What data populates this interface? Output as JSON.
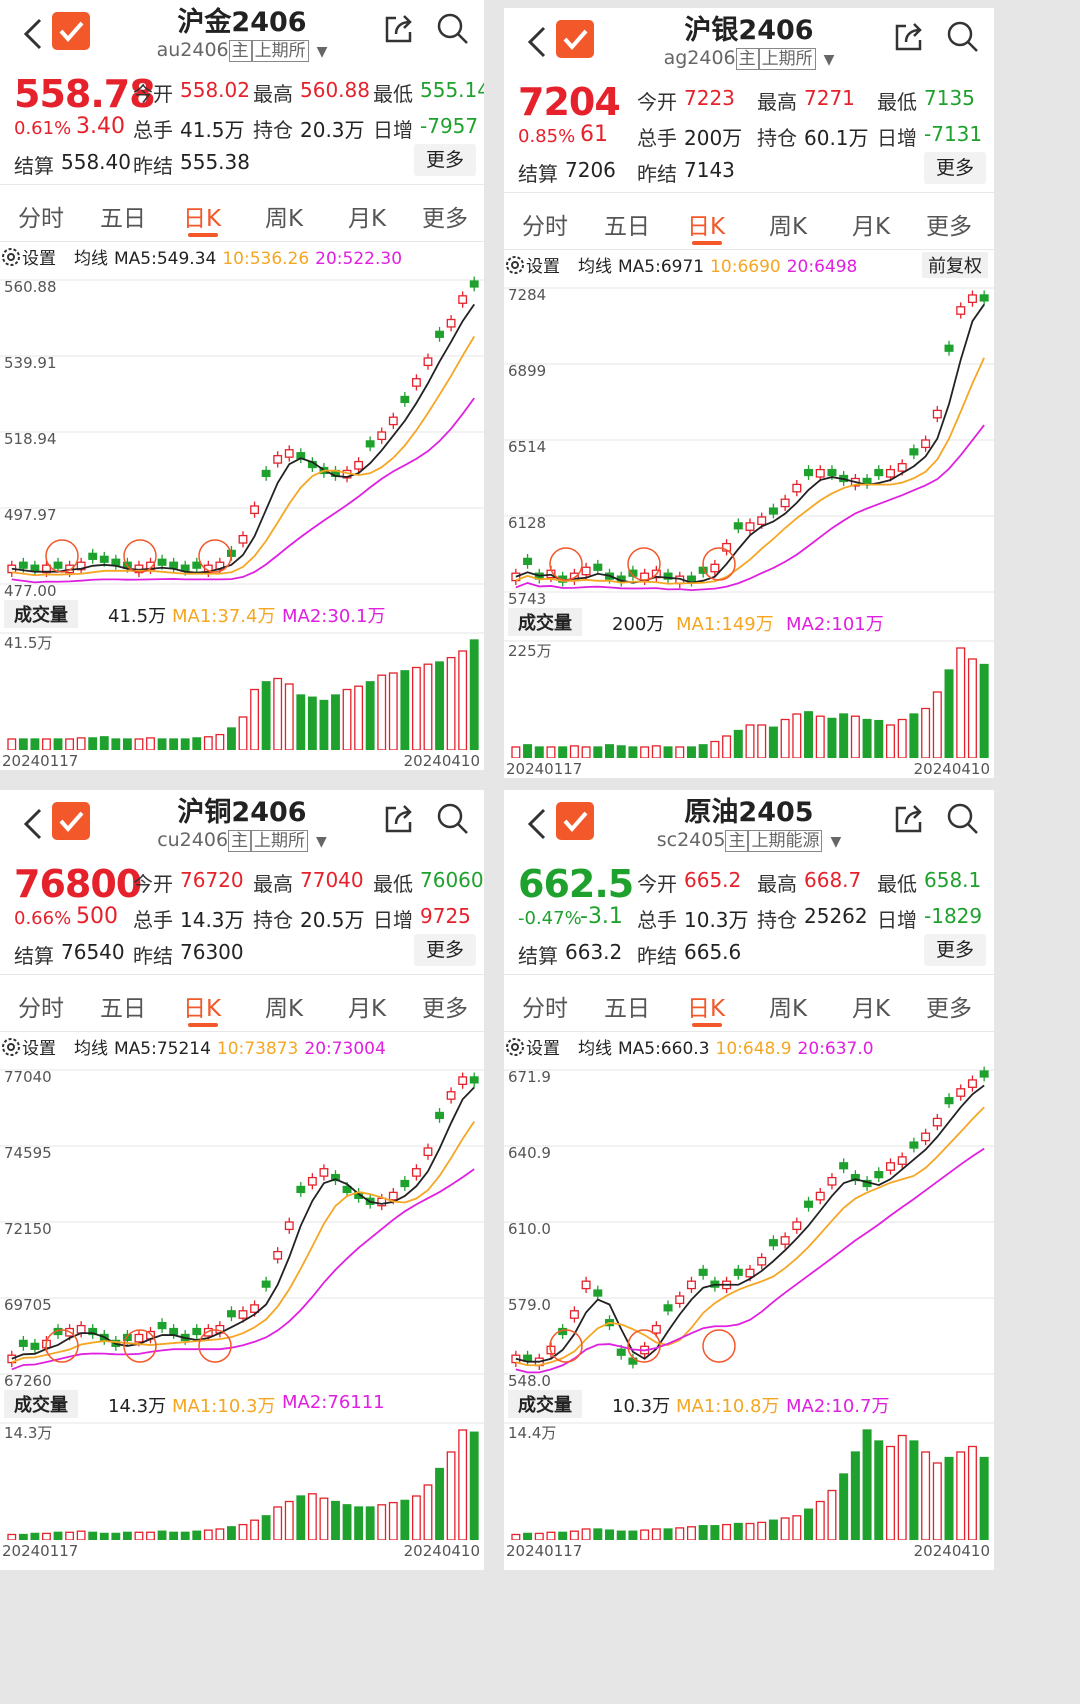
{
  "colors": {
    "up": "#e5212b",
    "down": "#1fa12e",
    "accent": "#f2582a",
    "ma1": "#222222",
    "ma2": "#f5a623",
    "ma3": "#e020e0"
  },
  "panels": [
    {
      "title": "沪金2406",
      "code": "au2406",
      "badge_main": "主",
      "badge_exchange": "上期所",
      "price": "558.78",
      "price_dir": "up",
      "pct": "0.61%",
      "chg": "3.40",
      "open_label": "今开",
      "open": "558.02",
      "high_label": "最高",
      "high": "560.88",
      "low_label": "最低",
      "low": "555.14",
      "vol_label": "总手",
      "vol": "41.5万",
      "oi_label": "持仓",
      "oi": "20.3万",
      "dinc_label": "日增",
      "dinc": "-7957",
      "dinc_dir": "down",
      "settle_label": "结算",
      "settle": "558.40",
      "prev_label": "昨结",
      "prev": "555.38",
      "more": "更多",
      "tabs": [
        "分时",
        "五日",
        "日K",
        "周K",
        "月K",
        "更多"
      ],
      "settings": "设置",
      "ma_label": "均线",
      "ma5": "MA5:549.34",
      "ma10": "10:536.26",
      "ma20": "20:522.30",
      "right_btn": "",
      "y_labels": [
        "560.88",
        "539.91",
        "518.94",
        "497.97",
        "477.00"
      ],
      "volume_badge": "成交量",
      "volume": "41.5万",
      "ma1": "MA1:37.4万",
      "ma2": "MA2:30.1万",
      "vol_top": "41.5万",
      "date_start": "20240117",
      "date_end": "20240410"
    },
    {
      "title": "沪银2406",
      "code": "ag2406",
      "badge_main": "主",
      "badge_exchange": "上期所",
      "price": "7204",
      "price_dir": "up",
      "pct": "0.85%",
      "chg": "61",
      "open_label": "今开",
      "open": "7223",
      "high_label": "最高",
      "high": "7271",
      "low_label": "最低",
      "low": "7135",
      "vol_label": "总手",
      "vol": "200万",
      "oi_label": "持仓",
      "oi": "60.1万",
      "dinc_label": "日增",
      "dinc": "-7131",
      "dinc_dir": "down",
      "settle_label": "结算",
      "settle": "7206",
      "prev_label": "昨结",
      "prev": "7143",
      "more": "更多",
      "tabs": [
        "分时",
        "五日",
        "日K",
        "周K",
        "月K",
        "更多"
      ],
      "settings": "设置",
      "ma_label": "均线",
      "ma5": "MA5:6971",
      "ma10": "10:6690",
      "ma20": "20:6498",
      "right_btn": "前复权",
      "y_labels": [
        "7284",
        "6899",
        "6514",
        "6128",
        "5743"
      ],
      "volume_badge": "成交量",
      "volume": "200万",
      "ma1": "MA1:149万",
      "ma2": "MA2:101万",
      "vol_top": "225万",
      "date_start": "20240117",
      "date_end": "20240410"
    },
    {
      "title": "沪铜2406",
      "code": "cu2406",
      "badge_main": "主",
      "badge_exchange": "上期所",
      "price": "76800",
      "price_dir": "up",
      "pct": "0.66%",
      "chg": "500",
      "open_label": "今开",
      "open": "76720",
      "high_label": "最高",
      "high": "77040",
      "low_label": "最低",
      "low": "76060",
      "vol_label": "总手",
      "vol": "14.3万",
      "oi_label": "持仓",
      "oi": "20.5万",
      "dinc_label": "日增",
      "dinc": "9725",
      "dinc_dir": "up",
      "settle_label": "结算",
      "settle": "76540",
      "prev_label": "昨结",
      "prev": "76300",
      "more": "更多",
      "tabs": [
        "分时",
        "五日",
        "日K",
        "周K",
        "月K",
        "更多"
      ],
      "settings": "设置",
      "ma_label": "均线",
      "ma5": "MA5:75214",
      "ma10": "10:73873",
      "ma20": "20:73004",
      "right_btn": "",
      "y_labels": [
        "77040",
        "74595",
        "72150",
        "69705",
        "67260"
      ],
      "volume_badge": "成交量",
      "volume": "14.3万",
      "ma1": "MA1:10.3万",
      "ma2": "MA2:76111",
      "vol_top": "14.3万",
      "date_start": "20240117",
      "date_end": "20240410"
    },
    {
      "title": "原油2405",
      "code": "sc2405",
      "badge_main": "主",
      "badge_exchange": "上期能源",
      "price": "662.5",
      "price_dir": "down",
      "pct": "-0.47%",
      "chg": "-3.1",
      "open_label": "今开",
      "open": "665.2",
      "high_label": "最高",
      "high": "668.7",
      "low_label": "最低",
      "low": "658.1",
      "vol_label": "总手",
      "vol": "10.3万",
      "oi_label": "持仓",
      "oi": "25262",
      "dinc_label": "日增",
      "dinc": "-1829",
      "dinc_dir": "down",
      "settle_label": "结算",
      "settle": "663.2",
      "prev_label": "昨结",
      "prev": "665.6",
      "more": "更多",
      "tabs": [
        "分时",
        "五日",
        "日K",
        "周K",
        "月K",
        "更多"
      ],
      "settings": "设置",
      "ma_label": "均线",
      "ma5": "MA5:660.3",
      "ma10": "10:648.9",
      "ma20": "20:637.0",
      "right_btn": "",
      "y_labels": [
        "671.9",
        "640.9",
        "610.0",
        "579.0",
        "548.0"
      ],
      "volume_badge": "成交量",
      "volume": "10.3万",
      "ma1": "MA1:10.8万",
      "ma2": "MA2:10.7万",
      "vol_top": "14.4万",
      "date_start": "20240117",
      "date_end": "20240410"
    }
  ],
  "chart_data": [
    {
      "type": "candlestick",
      "ylim": [
        477.0,
        560.88
      ],
      "shape": [
        0.05,
        0.04,
        0.03,
        0.05,
        0.04,
        0.05,
        0.06,
        0.07,
        0.06,
        0.05,
        0.04,
        0.05,
        0.06,
        0.05,
        0.04,
        0.03,
        0.04,
        0.05,
        0.06,
        0.08,
        0.15,
        0.25,
        0.35,
        0.42,
        0.44,
        0.41,
        0.38,
        0.36,
        0.35,
        0.37,
        0.4,
        0.45,
        0.5,
        0.55,
        0.6,
        0.68,
        0.75,
        0.82,
        0.88,
        0.96,
        0.99
      ],
      "vol_shape": [
        0.1,
        0.1,
        0.1,
        0.1,
        0.1,
        0.1,
        0.11,
        0.11,
        0.12,
        0.1,
        0.1,
        0.1,
        0.11,
        0.1,
        0.1,
        0.1,
        0.11,
        0.12,
        0.14,
        0.2,
        0.3,
        0.55,
        0.62,
        0.65,
        0.6,
        0.5,
        0.48,
        0.45,
        0.5,
        0.55,
        0.58,
        0.62,
        0.68,
        0.7,
        0.72,
        0.75,
        0.78,
        0.8,
        0.84,
        0.9,
        1.0
      ]
    },
    {
      "type": "candlestick",
      "ylim": [
        5743,
        7284
      ],
      "shape": [
        0.05,
        0.08,
        0.03,
        0.06,
        0.02,
        0.05,
        0.07,
        0.06,
        0.03,
        0.02,
        0.04,
        0.05,
        0.06,
        0.03,
        0.04,
        0.02,
        0.05,
        0.08,
        0.15,
        0.2,
        0.22,
        0.24,
        0.25,
        0.3,
        0.35,
        0.38,
        0.4,
        0.38,
        0.36,
        0.37,
        0.35,
        0.38,
        0.4,
        0.42,
        0.45,
        0.5,
        0.6,
        0.8,
        0.95,
        0.99,
        0.97
      ],
      "vol_shape": [
        0.1,
        0.12,
        0.1,
        0.1,
        0.1,
        0.11,
        0.1,
        0.1,
        0.12,
        0.11,
        0.1,
        0.1,
        0.11,
        0.1,
        0.1,
        0.1,
        0.12,
        0.15,
        0.2,
        0.25,
        0.3,
        0.3,
        0.28,
        0.35,
        0.4,
        0.42,
        0.38,
        0.36,
        0.4,
        0.38,
        0.35,
        0.34,
        0.3,
        0.35,
        0.4,
        0.45,
        0.6,
        0.8,
        1.0,
        0.9,
        0.85
      ]
    },
    {
      "type": "candlestick",
      "ylim": [
        67260,
        77040
      ],
      "shape": [
        0.05,
        0.08,
        0.07,
        0.1,
        0.12,
        0.14,
        0.15,
        0.12,
        0.1,
        0.08,
        0.1,
        0.12,
        0.13,
        0.14,
        0.12,
        0.1,
        0.12,
        0.14,
        0.15,
        0.18,
        0.2,
        0.22,
        0.28,
        0.4,
        0.5,
        0.6,
        0.65,
        0.68,
        0.64,
        0.6,
        0.58,
        0.56,
        0.58,
        0.6,
        0.62,
        0.68,
        0.75,
        0.85,
        0.94,
        0.99,
        0.97
      ],
      "vol_shape": [
        0.05,
        0.05,
        0.06,
        0.06,
        0.07,
        0.07,
        0.08,
        0.07,
        0.06,
        0.06,
        0.07,
        0.07,
        0.07,
        0.08,
        0.07,
        0.07,
        0.08,
        0.09,
        0.1,
        0.12,
        0.14,
        0.18,
        0.22,
        0.3,
        0.35,
        0.4,
        0.42,
        0.38,
        0.35,
        0.32,
        0.3,
        0.3,
        0.32,
        0.34,
        0.36,
        0.4,
        0.5,
        0.65,
        0.8,
        1.0,
        0.98
      ]
    },
    {
      "type": "candlestick",
      "ylim": [
        548.0,
        671.9
      ],
      "shape": [
        0.05,
        0.03,
        0.04,
        0.08,
        0.12,
        0.2,
        0.3,
        0.25,
        0.15,
        0.05,
        0.02,
        0.08,
        0.15,
        0.2,
        0.25,
        0.3,
        0.32,
        0.28,
        0.3,
        0.32,
        0.34,
        0.38,
        0.42,
        0.45,
        0.5,
        0.55,
        0.6,
        0.65,
        0.68,
        0.64,
        0.62,
        0.65,
        0.7,
        0.72,
        0.75,
        0.8,
        0.85,
        0.9,
        0.95,
        0.98,
        0.99
      ],
      "vol_shape": [
        0.05,
        0.06,
        0.06,
        0.07,
        0.07,
        0.08,
        0.1,
        0.1,
        0.09,
        0.08,
        0.08,
        0.09,
        0.1,
        0.1,
        0.11,
        0.12,
        0.13,
        0.13,
        0.14,
        0.15,
        0.15,
        0.16,
        0.18,
        0.2,
        0.22,
        0.28,
        0.35,
        0.45,
        0.6,
        0.8,
        1.0,
        0.9,
        0.85,
        0.95,
        0.9,
        0.8,
        0.7,
        0.75,
        0.8,
        0.85,
        0.75
      ]
    }
  ]
}
